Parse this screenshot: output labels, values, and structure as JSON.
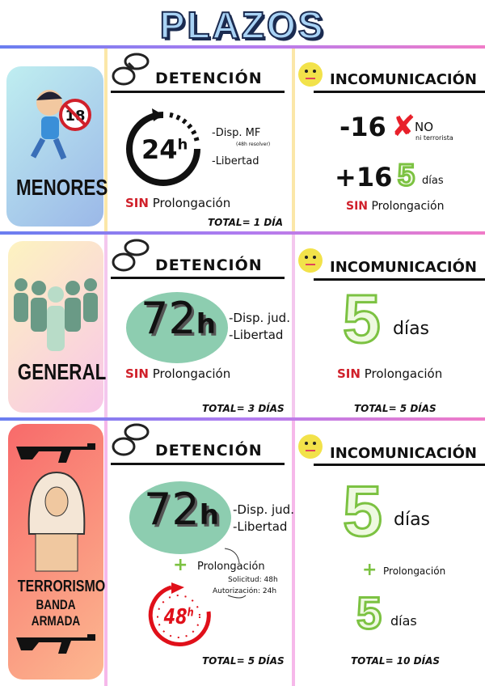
{
  "title": "PLAZOS",
  "colors": {
    "accent_red": "#d0202a",
    "green": "#7cc242",
    "oval": "#8dcdb0"
  },
  "rows": [
    {
      "category": "MENORES",
      "icon": "child-running-no-18-icon",
      "detencion": {
        "heading": "DETENCIÓN",
        "time": "24",
        "unit": "h",
        "items": [
          "-Disp. MF",
          "(48h resolver)",
          "-Libertad"
        ],
        "sin": "SIN",
        "prolongacion": "Prolongación",
        "total": "TOTAL= 1 DÍA"
      },
      "incomunicacion": {
        "heading": "INCOMUNICACIÓN",
        "under": "-16",
        "no": "NO",
        "no_sub": "ni terrorista",
        "over": "+16",
        "days": "5",
        "days_label": "días",
        "sin": "SIN",
        "prolongacion": "Prolongación"
      }
    },
    {
      "category": "GENERAL",
      "icon": "crowd-icon",
      "detencion": {
        "heading": "DETENCIÓN",
        "time": "72",
        "unit": "h",
        "items": [
          "-Disp. jud.",
          "-Libertad"
        ],
        "sin": "SIN",
        "prolongacion": "Prolongación",
        "total": "TOTAL= 3 DÍAS"
      },
      "incomunicacion": {
        "heading": "INCOMUNICACIÓN",
        "days": "5",
        "days_label": "días",
        "sin": "SIN",
        "prolongacion": "Prolongación",
        "total": "TOTAL= 5 DÍAS"
      }
    },
    {
      "category": "TERRORISMO",
      "category2": "BANDA ARMADA",
      "icon": "terrorist-rifle-icon",
      "detencion": {
        "heading": "DETENCIÓN",
        "time": "72",
        "unit": "h",
        "items": [
          "-Disp. jud.",
          "-Libertad"
        ],
        "plus": "+",
        "prolongacion": "Prolongación",
        "solicitud": "Solicitud: 48h",
        "autorizacion": "Autorización: 24h",
        "extra": "48",
        "extra_unit": "h",
        "total": "TOTAL= 5 DÍAS"
      },
      "incomunicacion": {
        "heading": "INCOMUNICACIÓN",
        "days": "5",
        "days_label": "días",
        "plus": "+",
        "prolongacion": "Prolongación",
        "days2": "5",
        "days2_label": "días",
        "total": "TOTAL= 10 DÍAS"
      }
    }
  ]
}
